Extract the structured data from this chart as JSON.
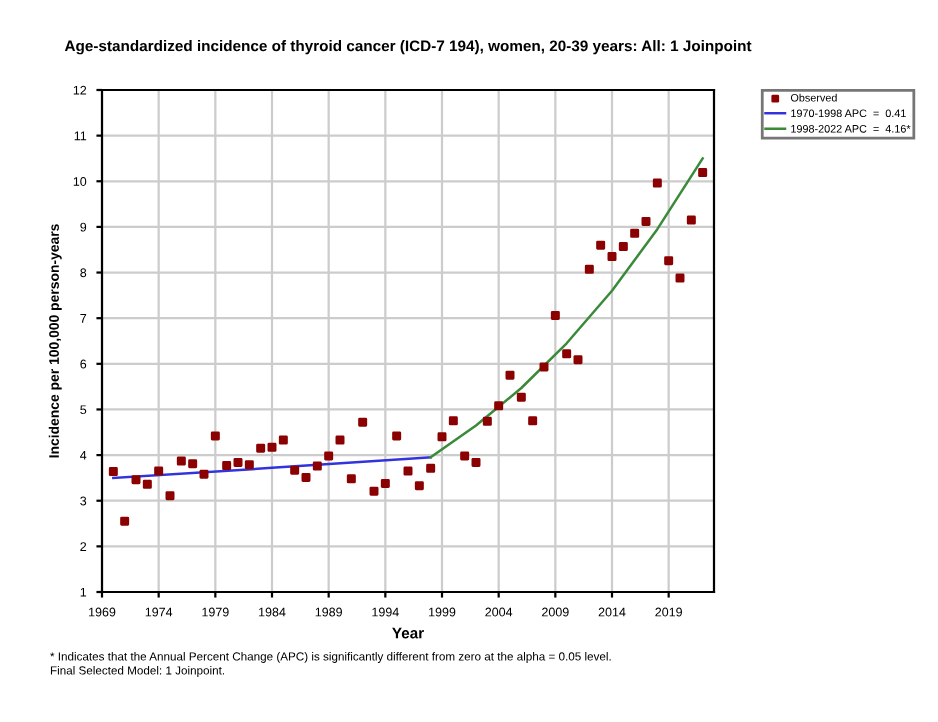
{
  "chart_data": {
    "type": "scatter",
    "title": "Age-standardized incidence of thyroid cancer (ICD-7 194), women, 20-39 years: All: 1 Joinpoint",
    "xlabel": "Year",
    "ylabel": "Incidence per 100,000 person-years",
    "series": [
      {
        "name": "Observed",
        "marker": "square",
        "color": "#8b0000",
        "x": [
          1970,
          1971,
          1972,
          1973,
          1974,
          1975,
          1976,
          1977,
          1978,
          1979,
          1980,
          1981,
          1982,
          1983,
          1984,
          1985,
          1986,
          1987,
          1988,
          1989,
          1990,
          1991,
          1992,
          1993,
          1994,
          1995,
          1996,
          1997,
          1998,
          1999,
          2000,
          2001,
          2002,
          2003,
          2004,
          2005,
          2006,
          2007,
          2008,
          2009,
          2010,
          2011,
          2012,
          2013,
          2014,
          2015,
          2016,
          2017,
          2018,
          2019,
          2020,
          2021,
          2022
        ],
        "values": [
          3.64,
          2.55,
          3.46,
          3.36,
          3.65,
          3.11,
          3.87,
          3.81,
          3.58,
          4.42,
          3.77,
          3.84,
          3.79,
          4.15,
          4.17,
          4.33,
          3.67,
          3.51,
          3.76,
          3.98,
          4.33,
          3.48,
          4.72,
          3.21,
          3.38,
          4.42,
          3.65,
          3.33,
          3.71,
          4.4,
          4.75,
          3.98,
          3.84,
          4.74,
          5.08,
          5.75,
          5.27,
          4.75,
          5.93,
          7.06,
          6.22,
          6.09,
          8.07,
          8.6,
          8.35,
          8.57,
          8.86,
          9.12,
          9.96,
          8.26,
          7.88,
          9.15,
          10.19
        ]
      },
      {
        "name": "1970-1998 APC  =  0.41",
        "type": "line",
        "marker": "none",
        "color": "#3333dd",
        "x": [
          1970,
          1984,
          1998
        ],
        "values": [
          3.5,
          3.72,
          3.95
        ]
      },
      {
        "name": "1998-2022 APC  =  4.16*",
        "type": "line",
        "marker": "none",
        "color": "#3a8a3a",
        "x": [
          1998,
          2002,
          2006,
          2010,
          2014,
          2018,
          2022
        ],
        "values": [
          3.95,
          4.65,
          5.47,
          6.45,
          7.6,
          8.95,
          10.5
        ]
      }
    ],
    "xlim": [
      1969,
      2023
    ],
    "xticks": [
      1969,
      1974,
      1979,
      1984,
      1989,
      1994,
      1999,
      2004,
      2009,
      2014,
      2019
    ],
    "ylim": [
      1,
      12
    ],
    "yticks": [
      1,
      2,
      3,
      4,
      5,
      6,
      7,
      8,
      9,
      10,
      11,
      12
    ],
    "grid": true,
    "legend": "top right",
    "annotations": [
      "* Indicates that the Annual Percent Change (APC) is significantly different from zero at the alpha = 0.05 level.",
      "Final Selected Model: 1 Joinpoint."
    ]
  }
}
